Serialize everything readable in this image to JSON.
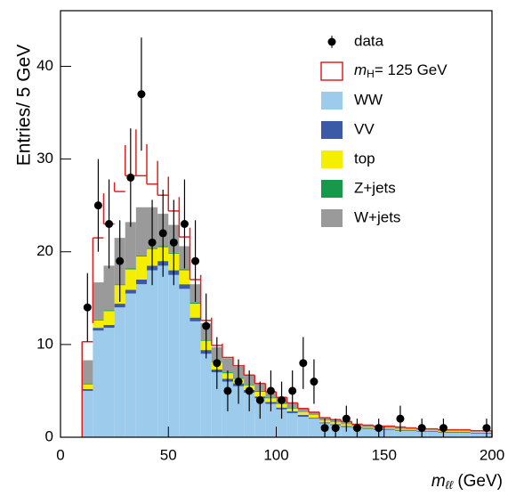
{
  "chart_data": {
    "type": "stacked-histogram",
    "y_label": "Entries/ 5 GeV",
    "x_label": "mℓℓ (GeV)",
    "bins": [
      10,
      15,
      20,
      25,
      30,
      35,
      40,
      45,
      50,
      55,
      60,
      65,
      70,
      75,
      80,
      85,
      90,
      95,
      100,
      105,
      110,
      115,
      120,
      125,
      130,
      135,
      140,
      145,
      150,
      155,
      160,
      165,
      170,
      175,
      180,
      185,
      190,
      195,
      200
    ],
    "xlim": [
      0,
      200
    ],
    "xticks": [
      0,
      50,
      100,
      150,
      200
    ],
    "ylim": [
      0,
      46
    ],
    "yticks": [
      0,
      10,
      20,
      30,
      40
    ],
    "legend": "upper right",
    "series": [
      {
        "name": "WW",
        "color": "#9dcbec",
        "values": [
          5.0,
          11.5,
          11.8,
          14.0,
          15.5,
          16.5,
          18.0,
          18.5,
          17.5,
          16.0,
          12.5,
          9.0,
          7.0,
          6.0,
          5.5,
          4.8,
          4.2,
          3.6,
          3.0,
          2.6,
          2.2,
          2.0,
          1.5,
          1.3,
          1.1,
          1.0,
          0.9,
          0.8,
          0.8,
          0.7,
          0.7,
          0.6,
          0.6,
          0.5,
          0.5,
          0.5,
          0.4,
          0.4
        ]
      },
      {
        "name": "VV",
        "color": "#3a5aa8",
        "values": [
          0.2,
          0.3,
          0.3,
          0.4,
          0.4,
          0.5,
          0.5,
          0.5,
          0.5,
          0.5,
          0.4,
          0.4,
          0.3,
          0.3,
          0.3,
          0.3,
          0.2,
          0.2,
          0.2,
          0.2,
          0.2,
          0.1,
          0.1,
          0.1,
          0.1,
          0.1,
          0.1,
          0.1,
          0.1,
          0.1,
          0.1,
          0.1,
          0.1,
          0.1,
          0.1,
          0.1,
          0.1,
          0.1
        ]
      },
      {
        "name": "top",
        "color": "#f4ee00",
        "values": [
          0.5,
          0.8,
          1.5,
          2.0,
          2.2,
          2.5,
          1.8,
          1.5,
          1.8,
          1.5,
          1.5,
          1.0,
          0.8,
          0.6,
          0.5,
          0.5,
          0.5,
          0.4,
          0.4,
          0.3,
          0.3,
          0.3,
          0.2,
          0.2,
          0.2,
          0.1,
          0.1,
          0.1,
          0.1,
          0.1,
          0.1,
          0.1,
          0.1,
          0.1,
          0.1,
          0.1,
          0.1,
          0.1
        ]
      },
      {
        "name": "Z+jets",
        "color": "#16994a",
        "values": [
          0.1,
          0.1,
          0.1,
          0.1,
          0.1,
          0.1,
          0.1,
          0.1,
          0.1,
          0.1,
          0.1,
          0.1,
          0.1,
          0.1,
          0.1,
          0.1,
          0.1,
          0.1,
          0.1,
          0.1,
          0,
          0,
          0,
          0,
          0,
          0,
          0,
          0,
          0,
          0,
          0,
          0,
          0,
          0,
          0,
          0,
          0,
          0
        ]
      },
      {
        "name": "W+jets",
        "color": "#9a9a9a",
        "values": [
          2.5,
          4.0,
          4.8,
          5.0,
          5.0,
          5.2,
          4.4,
          3.5,
          3.0,
          2.5,
          2.0,
          1.8,
          1.5,
          1.5,
          1.2,
          1.0,
          0.8,
          0.6,
          0.6,
          0.5,
          0.4,
          0.3,
          0.3,
          0.3,
          0.3,
          0.2,
          0.2,
          0.2,
          0.2,
          0.2,
          0.1,
          0.1,
          0.1,
          0.1,
          0.1,
          0.1,
          0.1,
          0.1
        ]
      },
      {
        "name": "mH= 125 GeV",
        "color": "#e02020",
        "style": "outline",
        "values": [
          2.0,
          4.8,
          4.5,
          5.0,
          5.0,
          3.4,
          2.5,
          2.0,
          1.5,
          1.0,
          0.5,
          0.3,
          0.2,
          0.1,
          0.1,
          0,
          0,
          0,
          0,
          0,
          0,
          0,
          0,
          0,
          0,
          0,
          0,
          0,
          0,
          0,
          0,
          0,
          0,
          0,
          0,
          0,
          0,
          0
        ]
      }
    ],
    "data": {
      "name": "data",
      "color": "#000000",
      "x": [
        12.5,
        17.5,
        22.5,
        27.5,
        32.5,
        37.5,
        42.5,
        47.5,
        52.5,
        57.5,
        62.5,
        67.5,
        72.5,
        77.5,
        82.5,
        87.5,
        92.5,
        97.5,
        102.5,
        107.5,
        112.5,
        117.5,
        122.5,
        127.5,
        132.5,
        137.5,
        147.5,
        157.5,
        167.5,
        177.5,
        197.5
      ],
      "values": [
        14,
        25,
        23,
        19,
        28,
        37,
        21,
        22,
        21,
        23,
        19,
        12,
        8,
        5,
        6,
        5,
        4,
        5,
        4,
        5,
        8,
        6,
        1,
        1,
        2,
        1,
        1,
        2,
        1,
        1,
        1
      ],
      "errors": [
        3.7,
        5,
        4.8,
        4.4,
        5.3,
        6.1,
        4.6,
        4.7,
        4.6,
        4.8,
        4.4,
        3.5,
        2.8,
        2.2,
        2.4,
        2.2,
        2,
        2.2,
        2,
        2.2,
        2.8,
        2.4,
        1,
        1,
        1.4,
        1,
        1,
        1.4,
        1,
        1,
        1
      ]
    }
  }
}
